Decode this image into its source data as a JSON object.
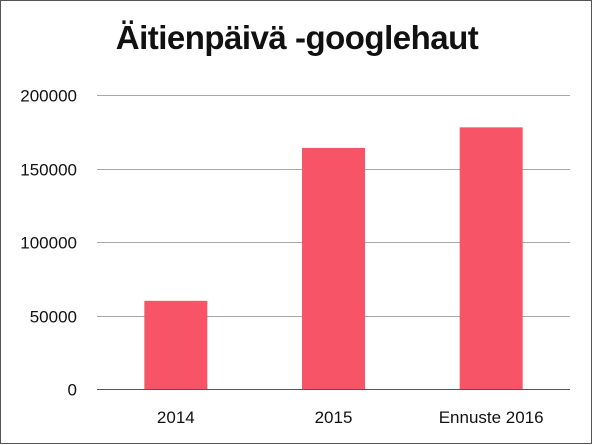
{
  "chart_data": {
    "type": "bar",
    "title": "Äitienpäivä -googlehaut",
    "categories": [
      "2014",
      "2015",
      "Ennuste 2016"
    ],
    "values": [
      60000,
      164000,
      178000
    ],
    "ylim": [
      0,
      200000
    ],
    "yticks": [
      "0",
      "50000",
      "100000",
      "150000",
      "200000"
    ],
    "grid": true,
    "legend": "none",
    "colors": {
      "bar": "#f85467",
      "grid": "#a8a8a8",
      "axis": "#555555"
    }
  }
}
